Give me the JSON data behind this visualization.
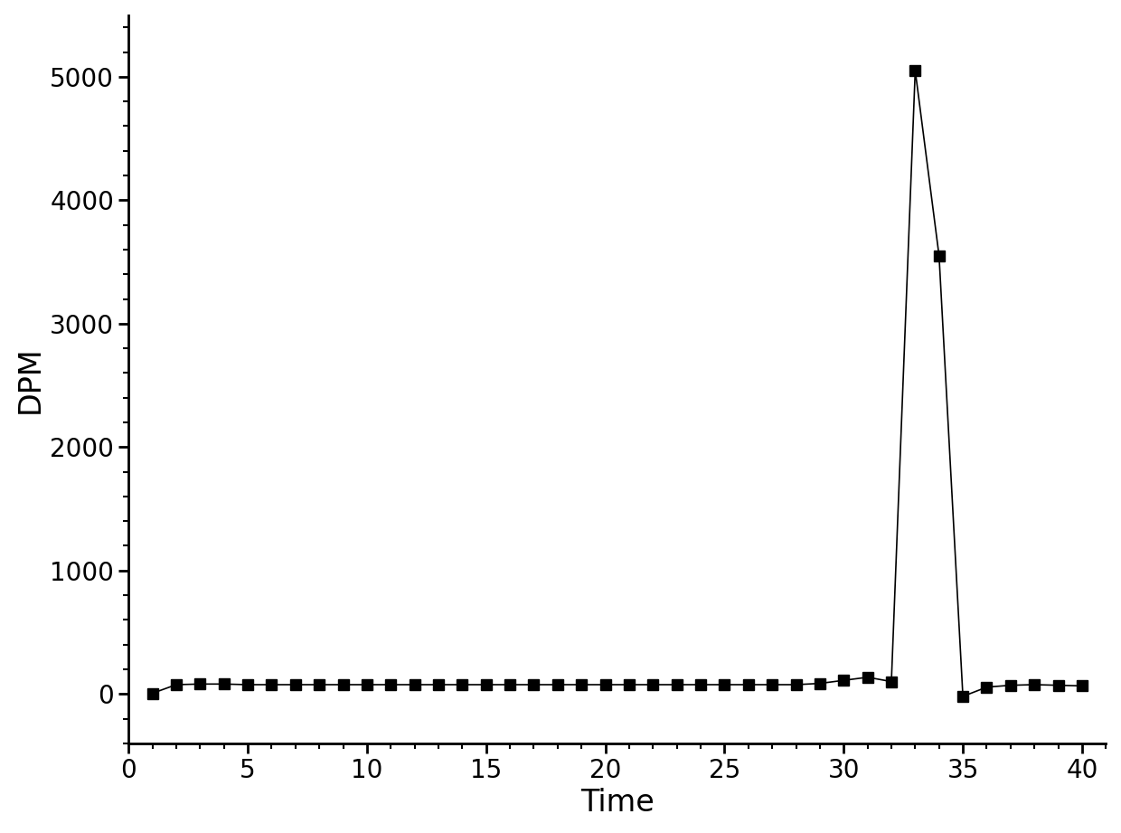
{
  "x": [
    1,
    2,
    3,
    4,
    5,
    6,
    7,
    8,
    9,
    10,
    11,
    12,
    13,
    14,
    15,
    16,
    17,
    18,
    19,
    20,
    21,
    22,
    23,
    24,
    25,
    26,
    27,
    28,
    29,
    30,
    31,
    32,
    33,
    34,
    35,
    36,
    37,
    38,
    39,
    40
  ],
  "y": [
    5,
    75,
    80,
    80,
    75,
    75,
    75,
    75,
    75,
    75,
    75,
    75,
    75,
    75,
    75,
    75,
    75,
    75,
    75,
    75,
    75,
    75,
    75,
    75,
    75,
    75,
    75,
    75,
    85,
    110,
    135,
    100,
    5050,
    3550,
    -20,
    55,
    70,
    75,
    70,
    65
  ],
  "xlabel": "Time",
  "ylabel": "DPM",
  "xlim": [
    0,
    41
  ],
  "ylim": [
    -400,
    5500
  ],
  "xticks": [
    0,
    5,
    10,
    15,
    20,
    25,
    30,
    35,
    40
  ],
  "yticks": [
    0,
    1000,
    2000,
    3000,
    4000,
    5000
  ],
  "x_minor_interval": 1,
  "y_minor_interval": 200,
  "line_color": "#000000",
  "marker": "s",
  "marker_size": 9,
  "linewidth": 1.2,
  "background_color": "#ffffff",
  "xlabel_fontsize": 24,
  "ylabel_fontsize": 24,
  "tick_fontsize": 20,
  "spine_linewidth": 2.0
}
